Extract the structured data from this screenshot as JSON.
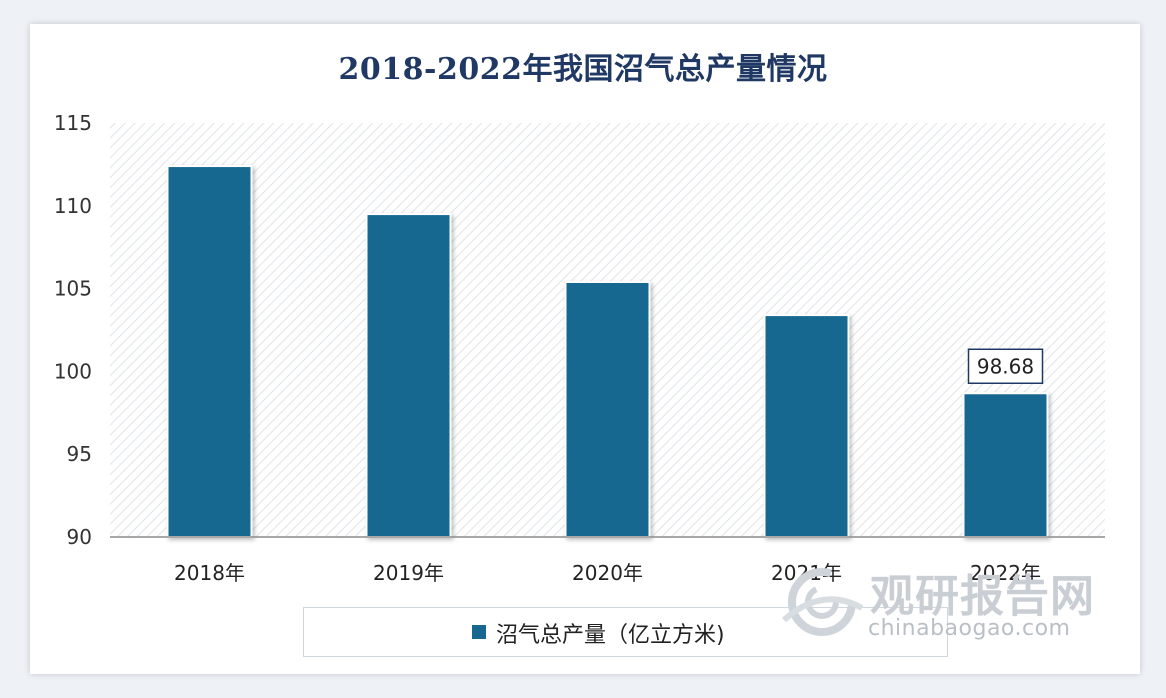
{
  "chart_data": {
    "type": "bar",
    "title": "2018-2022年我国沼气总产量情况",
    "categories": [
      "2018年",
      "2019年",
      "2020年",
      "2021年",
      "2022年"
    ],
    "series": [
      {
        "name": "沼气总产量（亿立方米)",
        "values": [
          112.4,
          109.5,
          105.4,
          103.4,
          98.68
        ]
      }
    ],
    "data_labels": [
      null,
      null,
      null,
      null,
      "98.68"
    ],
    "ylim": [
      90,
      115
    ],
    "yticks": [
      "90",
      "95",
      "100",
      "105",
      "110",
      "115"
    ],
    "bar_color": "#176891",
    "legend_position": "bottom"
  },
  "watermark": {
    "name": "观研报告网",
    "url": "chinabaogao.com"
  }
}
